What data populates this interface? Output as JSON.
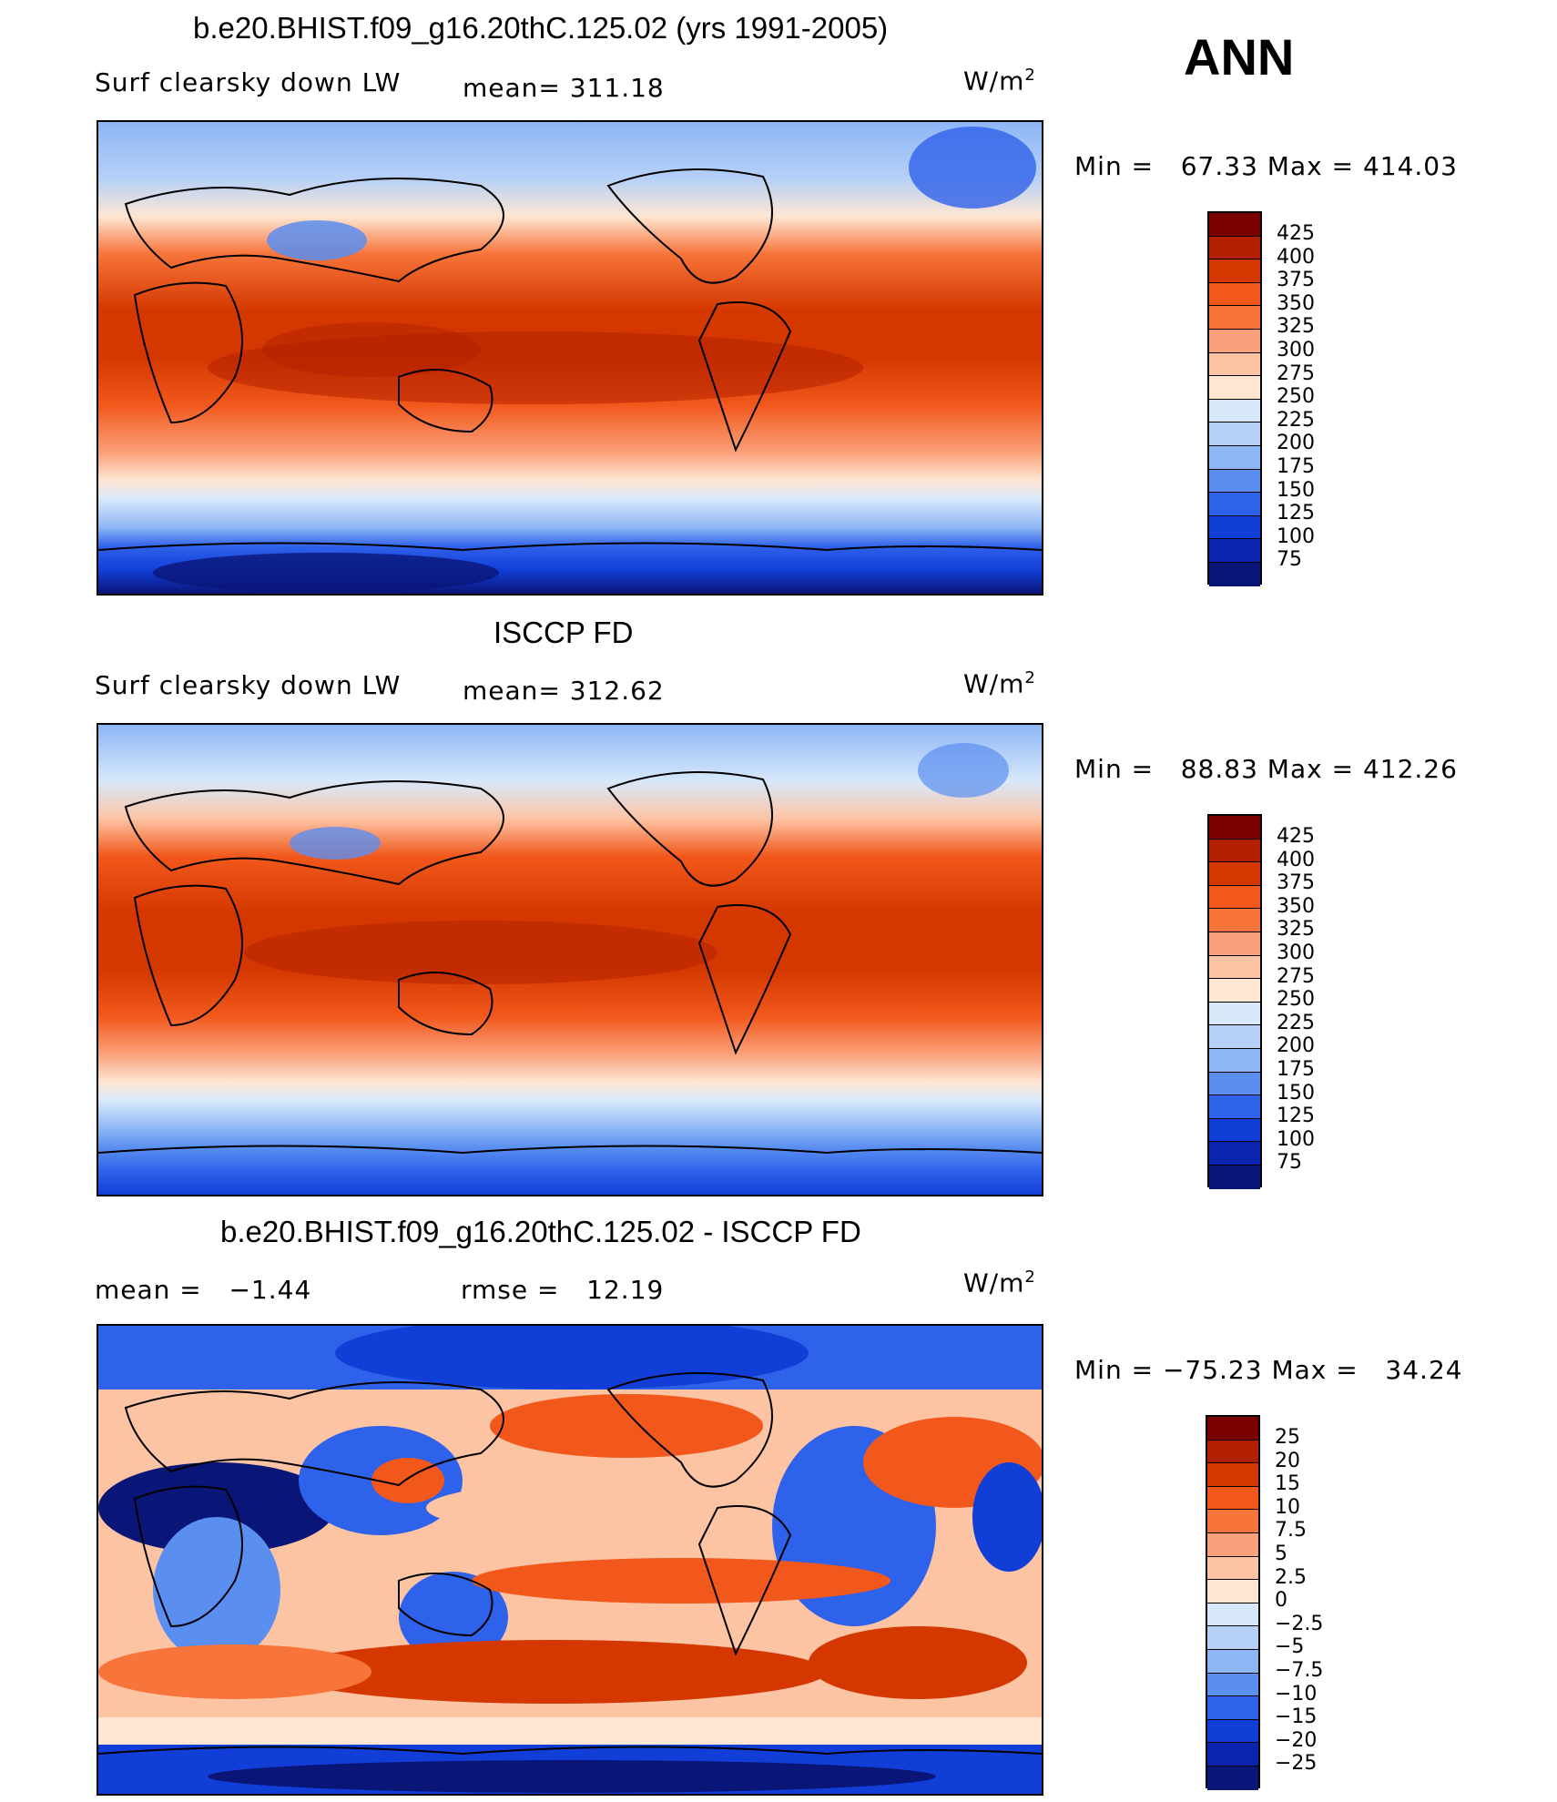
{
  "season": "ANN",
  "panels": [
    {
      "title": "b.e20.BHIST.f09_g16.20thC.125.02 (yrs 1991-2005)",
      "left_label": "Surf clearsky down LW",
      "mid_label": "mean= 311.18",
      "units_base": "W/m",
      "units_exp": "2",
      "minmax": "Min =   67.33 Max = 414.03",
      "levels": [
        "425",
        "400",
        "375",
        "350",
        "325",
        "300",
        "275",
        "250",
        "225",
        "200",
        "175",
        "150",
        "125",
        "100",
        "75"
      ]
    },
    {
      "title": "ISCCP FD",
      "left_label": "Surf clearsky down LW",
      "mid_label": "mean= 312.62",
      "units_base": "W/m",
      "units_exp": "2",
      "minmax": "Min =   88.83 Max = 412.26",
      "levels": [
        "425",
        "400",
        "375",
        "350",
        "325",
        "300",
        "275",
        "250",
        "225",
        "200",
        "175",
        "150",
        "125",
        "100",
        "75"
      ]
    },
    {
      "title": "b.e20.BHIST.f09_g16.20thC.125.02 - ISCCP FD",
      "left_label": "mean =   −1.44",
      "mid_label": "rmse =   12.19",
      "units_base": "W/m",
      "units_exp": "2",
      "minmax": "Min = −75.23 Max =   34.24",
      "levels": [
        "25",
        "20",
        "15",
        "10",
        "7.5",
        "5",
        "2.5",
        "0",
        "−2.5",
        "−5",
        "−7.5",
        "−10",
        "−15",
        "−20",
        "−25"
      ]
    }
  ],
  "colors": {
    "colorbar": [
      "#7b0000",
      "#b22000",
      "#d43800",
      "#f2581c",
      "#f7743a",
      "#faa07a",
      "#fdc4a4",
      "#fee6d2",
      "#d7e8fb",
      "#b6d0f8",
      "#8db6f4",
      "#5a8ef0",
      "#2f62ea",
      "#123ed8",
      "#0a24b0",
      "#0a1578"
    ]
  }
}
